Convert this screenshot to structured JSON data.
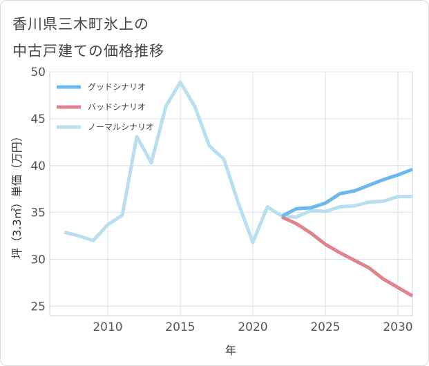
{
  "title": {
    "line1": "香川県三木町氷上の",
    "line2": "中古戸建ての価格推移"
  },
  "chart_data": {
    "type": "line",
    "xlabel": "年",
    "ylabel": "坪（3.3㎡）単価（万円）",
    "xlim": [
      2006,
      2031
    ],
    "ylim": [
      24,
      50
    ],
    "xticks": [
      2010,
      2015,
      2020,
      2025,
      2030
    ],
    "yticks": [
      25,
      30,
      35,
      40,
      45,
      50
    ],
    "grid": true,
    "legend_position": "top-left",
    "series": [
      {
        "name": "グッドシナリオ",
        "color": "#6bb8ec",
        "points": [
          [
            2022,
            34.6
          ],
          [
            2023,
            35.4
          ],
          [
            2024,
            35.5
          ],
          [
            2025,
            36.0
          ],
          [
            2026,
            37.0
          ],
          [
            2027,
            37.3
          ],
          [
            2028,
            37.9
          ],
          [
            2029,
            38.5
          ],
          [
            2030,
            39.0
          ],
          [
            2031,
            39.6
          ]
        ]
      },
      {
        "name": "バッドシナリオ",
        "color": "#e0848c",
        "points": [
          [
            2022,
            34.5
          ],
          [
            2023,
            33.8
          ],
          [
            2024,
            32.8
          ],
          [
            2025,
            31.6
          ],
          [
            2026,
            30.7
          ],
          [
            2027,
            29.9
          ],
          [
            2028,
            29.1
          ],
          [
            2029,
            27.9
          ],
          [
            2030,
            27.0
          ],
          [
            2031,
            26.1
          ]
        ]
      },
      {
        "name": "ノーマルシナリオ",
        "color": "#b9dfef",
        "points": [
          [
            2007,
            32.9
          ],
          [
            2008,
            32.5
          ],
          [
            2009,
            32.0
          ],
          [
            2010,
            33.7
          ],
          [
            2011,
            34.7
          ],
          [
            2012,
            43.1
          ],
          [
            2013,
            40.3
          ],
          [
            2014,
            46.3
          ],
          [
            2015,
            48.9
          ],
          [
            2016,
            46.3
          ],
          [
            2017,
            42.1
          ],
          [
            2018,
            40.7
          ],
          [
            2019,
            36.0
          ],
          [
            2020,
            31.8
          ],
          [
            2021,
            35.6
          ],
          [
            2022,
            34.6
          ],
          [
            2023,
            34.5
          ],
          [
            2024,
            35.2
          ],
          [
            2025,
            35.1
          ],
          [
            2026,
            35.6
          ],
          [
            2027,
            35.7
          ],
          [
            2028,
            36.1
          ],
          [
            2029,
            36.2
          ],
          [
            2030,
            36.7
          ],
          [
            2031,
            36.7
          ]
        ]
      }
    ]
  }
}
